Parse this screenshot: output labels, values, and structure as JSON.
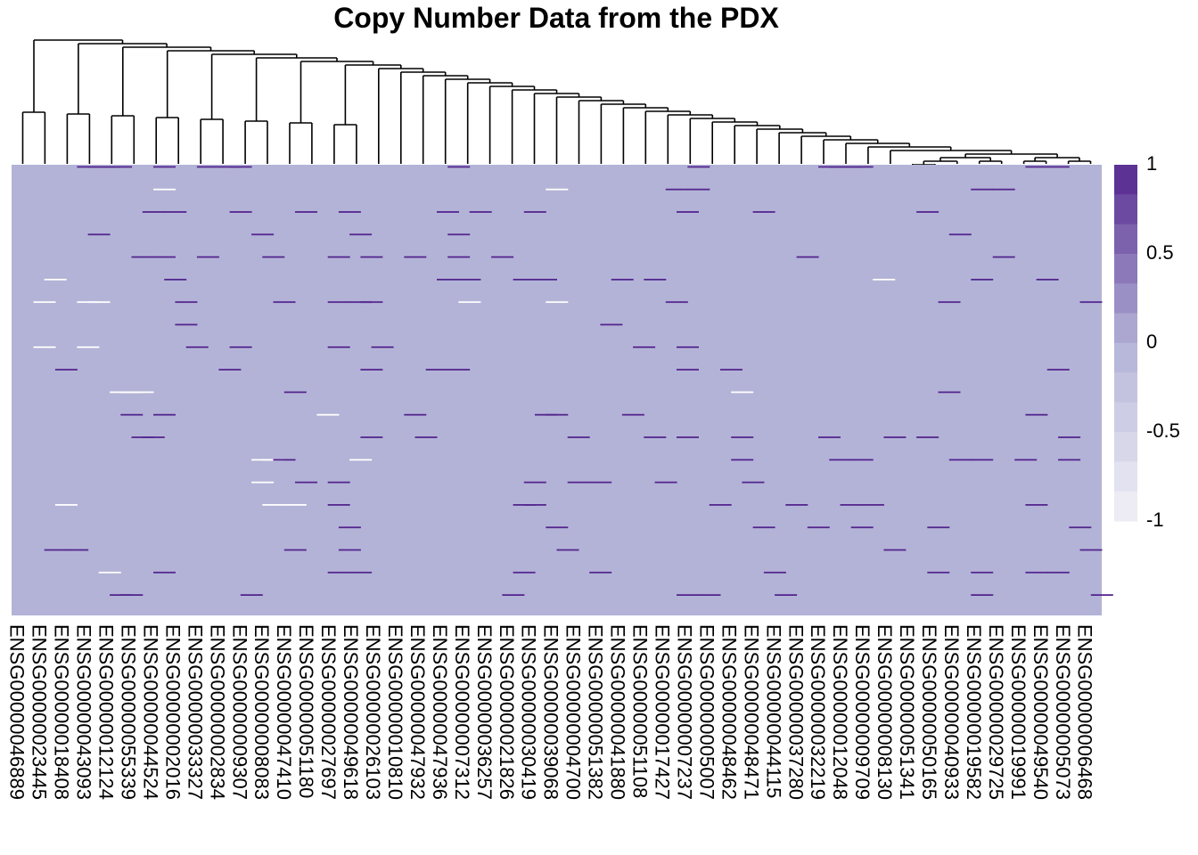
{
  "chart_data": {
    "type": "heatmap",
    "title": "Copy Number Data from the PDX",
    "colors": {
      "low": "#F2F1F8",
      "mid": "#B3B3D7",
      "high": "#54278F"
    },
    "legend": {
      "position": "right",
      "min": -1,
      "max": 1,
      "tick_labels": [
        "1",
        "0.5",
        "0",
        "-0.5",
        "-1"
      ],
      "tick_values": [
        1,
        0.5,
        0,
        -0.5,
        -1
      ],
      "steps": 12
    },
    "columns": [
      "ENSG00000046889",
      "ENSG00000023445",
      "ENSG00000018408",
      "ENSG00000043093",
      "ENSG00000012124",
      "ENSG00000055339",
      "ENSG00000044524",
      "ENSG00000002016",
      "ENSG00000033327",
      "ENSG00000002834",
      "ENSG00000009307",
      "ENSG00000008083",
      "ENSG00000047410",
      "ENSG00000051180",
      "ENSG00000027697",
      "ENSG00000049618",
      "ENSG00000026103",
      "ENSG00000010810",
      "ENSG00000047932",
      "ENSG00000047936",
      "ENSG00000007312",
      "ENSG00000036257",
      "ENSG00000021826",
      "ENSG00000030419",
      "ENSG00000039068",
      "ENSG00000004700",
      "ENSG00000051382",
      "ENSG00000041880",
      "ENSG00000051108",
      "ENSG00000017427",
      "ENSG00000007237",
      "ENSG00000005007",
      "ENSG00000048462",
      "ENSG00000048471",
      "ENSG00000044115",
      "ENSG00000037280",
      "ENSG00000032219",
      "ENSG00000012048",
      "ENSG00000009709",
      "ENSG00000008130",
      "ENSG00000051341",
      "ENSG00000050165",
      "ENSG00000040933",
      "ENSG00000019582",
      "ENSG00000029725",
      "ENSG00000019991",
      "ENSG00000049540",
      "ENSG00000005073",
      "ENSG00000006468"
    ],
    "n_rows": 100,
    "baseline_value": 0,
    "nonzero_cells": [
      [
        0,
        6,
        1
      ],
      [
        0,
        7,
        1
      ],
      [
        0,
        8,
        1
      ],
      [
        0,
        9,
        1
      ],
      [
        0,
        13,
        1
      ],
      [
        0,
        17,
        1
      ],
      [
        0,
        19,
        1
      ],
      [
        0,
        20,
        1
      ],
      [
        0,
        40,
        1
      ],
      [
        0,
        62,
        1
      ],
      [
        0,
        74,
        1
      ],
      [
        0,
        75,
        1
      ],
      [
        0,
        76,
        1
      ],
      [
        0,
        77,
        1
      ],
      [
        0,
        93,
        1
      ],
      [
        0,
        95,
        1
      ],
      [
        1,
        13,
        -1
      ],
      [
        1,
        49,
        -0.5
      ],
      [
        1,
        60,
        1
      ],
      [
        1,
        62,
        1
      ],
      [
        1,
        88,
        1
      ],
      [
        1,
        90,
        1
      ],
      [
        2,
        12,
        1
      ],
      [
        2,
        14,
        1
      ],
      [
        2,
        20,
        1
      ],
      [
        2,
        26,
        1
      ],
      [
        2,
        30,
        1
      ],
      [
        2,
        39,
        1
      ],
      [
        2,
        42,
        1
      ],
      [
        2,
        47,
        1
      ],
      [
        2,
        61,
        1
      ],
      [
        2,
        68,
        1
      ],
      [
        2,
        83,
        1
      ],
      [
        3,
        7,
        1
      ],
      [
        3,
        22,
        1
      ],
      [
        3,
        31,
        1
      ],
      [
        3,
        40,
        1
      ],
      [
        3,
        86,
        1
      ],
      [
        4,
        11,
        1
      ],
      [
        4,
        13,
        1
      ],
      [
        4,
        17,
        1
      ],
      [
        4,
        23,
        1
      ],
      [
        4,
        29,
        1
      ],
      [
        4,
        32,
        1
      ],
      [
        4,
        36,
        1
      ],
      [
        4,
        40,
        1
      ],
      [
        4,
        44,
        1
      ],
      [
        4,
        72,
        1
      ],
      [
        4,
        90,
        1
      ],
      [
        5,
        3,
        -1
      ],
      [
        5,
        14,
        1
      ],
      [
        5,
        39,
        1
      ],
      [
        5,
        41,
        1
      ],
      [
        5,
        46,
        1
      ],
      [
        5,
        48,
        1
      ],
      [
        5,
        55,
        1
      ],
      [
        5,
        58,
        1
      ],
      [
        5,
        79,
        -0.5
      ],
      [
        5,
        88,
        1
      ],
      [
        5,
        94,
        1
      ],
      [
        6,
        2,
        -1
      ],
      [
        6,
        6,
        -1
      ],
      [
        6,
        7,
        -1
      ],
      [
        6,
        15,
        1
      ],
      [
        6,
        24,
        1
      ],
      [
        6,
        29,
        1
      ],
      [
        6,
        31,
        1
      ],
      [
        6,
        32,
        1
      ],
      [
        6,
        41,
        -1
      ],
      [
        6,
        49,
        -0.5
      ],
      [
        6,
        60,
        1
      ],
      [
        6,
        85,
        1
      ],
      [
        6,
        98,
        1
      ],
      [
        7,
        15,
        1
      ],
      [
        7,
        54,
        1
      ],
      [
        8,
        2,
        -1
      ],
      [
        8,
        6,
        -1
      ],
      [
        8,
        16,
        1
      ],
      [
        8,
        20,
        1
      ],
      [
        8,
        29,
        1
      ],
      [
        8,
        33,
        1
      ],
      [
        8,
        57,
        1
      ],
      [
        8,
        61,
        1
      ],
      [
        9,
        4,
        1
      ],
      [
        9,
        19,
        1
      ],
      [
        9,
        32,
        1
      ],
      [
        9,
        38,
        1
      ],
      [
        9,
        40,
        1
      ],
      [
        9,
        61,
        1
      ],
      [
        9,
        65,
        1
      ],
      [
        9,
        95,
        1
      ],
      [
        10,
        9,
        -1
      ],
      [
        10,
        10,
        -1
      ],
      [
        10,
        11,
        -1
      ],
      [
        10,
        25,
        1
      ],
      [
        10,
        66,
        -1
      ],
      [
        10,
        85,
        1
      ],
      [
        11,
        10,
        1
      ],
      [
        11,
        13,
        1
      ],
      [
        11,
        28,
        -1
      ],
      [
        11,
        36,
        1
      ],
      [
        11,
        48,
        1
      ],
      [
        11,
        49,
        1
      ],
      [
        11,
        56,
        1
      ],
      [
        11,
        93,
        1
      ],
      [
        12,
        11,
        1
      ],
      [
        12,
        12,
        1
      ],
      [
        12,
        32,
        1
      ],
      [
        12,
        37,
        1
      ],
      [
        12,
        51,
        1
      ],
      [
        12,
        58,
        1
      ],
      [
        12,
        61,
        1
      ],
      [
        12,
        66,
        1
      ],
      [
        12,
        74,
        1
      ],
      [
        12,
        80,
        1
      ],
      [
        12,
        83,
        1
      ],
      [
        12,
        96,
        1
      ],
      [
        13,
        22,
        -1
      ],
      [
        13,
        23,
        -1
      ],
      [
        13,
        24,
        1
      ],
      [
        13,
        31,
        -1
      ],
      [
        13,
        66,
        1
      ],
      [
        13,
        75,
        1
      ],
      [
        13,
        77,
        1
      ],
      [
        13,
        86,
        1
      ],
      [
        13,
        88,
        1
      ],
      [
        13,
        92,
        1
      ],
      [
        13,
        96,
        1
      ],
      [
        14,
        22,
        -1
      ],
      [
        14,
        26,
        1
      ],
      [
        14,
        29,
        1
      ],
      [
        14,
        47,
        1
      ],
      [
        14,
        51,
        1
      ],
      [
        14,
        53,
        1
      ],
      [
        14,
        59,
        1
      ],
      [
        14,
        67,
        1
      ],
      [
        15,
        4,
        -1
      ],
      [
        15,
        23,
        -1
      ],
      [
        15,
        25,
        -1
      ],
      [
        15,
        29,
        1
      ],
      [
        15,
        46,
        1
      ],
      [
        15,
        47,
        1
      ],
      [
        15,
        64,
        1
      ],
      [
        15,
        71,
        1
      ],
      [
        15,
        76,
        1
      ],
      [
        15,
        78,
        1
      ],
      [
        15,
        93,
        1
      ],
      [
        16,
        30,
        1
      ],
      [
        16,
        49,
        1
      ],
      [
        16,
        68,
        1
      ],
      [
        16,
        73,
        1
      ],
      [
        16,
        77,
        1
      ],
      [
        16,
        84,
        1
      ],
      [
        16,
        97,
        1
      ],
      [
        17,
        3,
        1
      ],
      [
        17,
        5,
        1
      ],
      [
        17,
        25,
        1
      ],
      [
        17,
        30,
        1
      ],
      [
        17,
        50,
        1
      ],
      [
        17,
        80,
        1
      ],
      [
        17,
        98,
        1
      ],
      [
        18,
        8,
        -1
      ],
      [
        18,
        13,
        1
      ],
      [
        18,
        29,
        1
      ],
      [
        18,
        31,
        1
      ],
      [
        18,
        46,
        1
      ],
      [
        18,
        53,
        1
      ],
      [
        18,
        69,
        1
      ],
      [
        18,
        84,
        1
      ],
      [
        18,
        88,
        1
      ],
      [
        18,
        93,
        1
      ],
      [
        18,
        95,
        1
      ],
      [
        19,
        9,
        1
      ],
      [
        19,
        10,
        1
      ],
      [
        19,
        21,
        1
      ],
      [
        19,
        45,
        1
      ],
      [
        19,
        61,
        1
      ],
      [
        19,
        63,
        1
      ],
      [
        19,
        70,
        1
      ],
      [
        19,
        88,
        1
      ],
      [
        19,
        99,
        1
      ]
    ],
    "dendrogram": "column clustering tree"
  }
}
